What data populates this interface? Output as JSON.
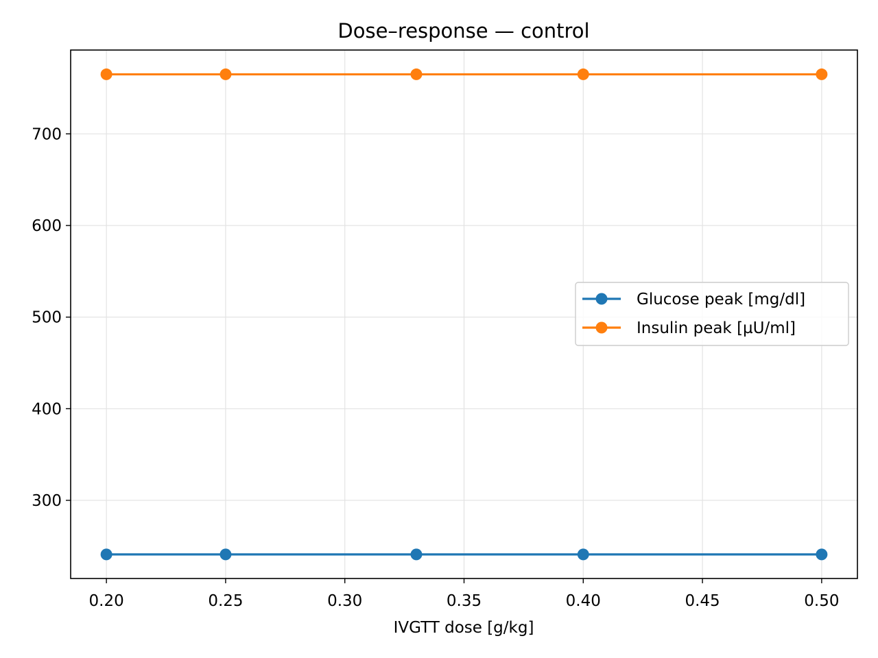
{
  "chart_data": {
    "type": "line",
    "title": "Dose–response — control",
    "xlabel": "IVGTT dose [g/kg]",
    "ylabel": "",
    "x": [
      0.2,
      0.25,
      0.33,
      0.4,
      0.5
    ],
    "xlim": [
      0.185,
      0.515
    ],
    "ylim": [
      214.7,
      791.5
    ],
    "xticks": [
      0.2,
      0.25,
      0.3,
      0.35,
      0.4,
      0.45,
      0.5
    ],
    "xtick_labels": [
      "0.20",
      "0.25",
      "0.30",
      "0.35",
      "0.40",
      "0.45",
      "0.50"
    ],
    "yticks": [
      300,
      400,
      500,
      600,
      700
    ],
    "ytick_labels": [
      "300",
      "400",
      "500",
      "600",
      "700"
    ],
    "grid": true,
    "legend_position": "center-right",
    "series": [
      {
        "name": "Glucose peak [mg/dl]",
        "color": "#1f77b4",
        "marker": "circle",
        "values": [
          241,
          241,
          241,
          241,
          241
        ]
      },
      {
        "name": "Insulin peak [µU/ml]",
        "color": "#ff7f0e",
        "marker": "circle",
        "values": [
          765,
          765,
          765,
          765,
          765
        ]
      }
    ]
  }
}
